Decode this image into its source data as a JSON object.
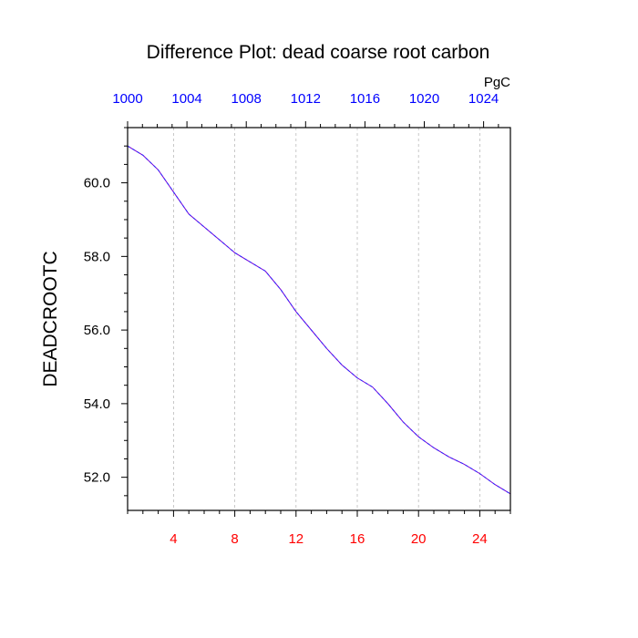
{
  "chart_data": {
    "type": "line",
    "title": "Difference Plot: dead coarse root carbon",
    "units_label": "PgC",
    "ylabel": "DEADCROOTC",
    "xlabel": "",
    "x": [
      1,
      2,
      3,
      4,
      5,
      6,
      7,
      8,
      9,
      10,
      11,
      12,
      13,
      14,
      15,
      16,
      17,
      18,
      19,
      20,
      21,
      22,
      23,
      24,
      25,
      26
    ],
    "series": [
      {
        "values": [
          61.0,
          60.75,
          60.35,
          59.75,
          59.15,
          58.8,
          58.45,
          58.1,
          57.85,
          57.6,
          57.1,
          56.5,
          56.0,
          55.5,
          55.05,
          54.7,
          54.45,
          54.0,
          53.5,
          53.1,
          52.8,
          52.55,
          52.35,
          52.1,
          51.8,
          51.55
        ]
      }
    ],
    "xlim": [
      1,
      26
    ],
    "ylim": [
      51.1,
      61.5
    ],
    "bottom_ticks": [
      4,
      8,
      12,
      16,
      20,
      24
    ],
    "bottom_tick_labels": [
      "4",
      "8",
      "12",
      "16",
      "20",
      "24"
    ],
    "top_tick_labels": [
      "1000",
      "1004",
      "1008",
      "1012",
      "1016",
      "1020",
      "1024"
    ],
    "top_ticks_positions": [
      1,
      4.875,
      8.75,
      12.625,
      16.5,
      20.375,
      24.25
    ],
    "y_ticks": [
      52.0,
      54.0,
      56.0,
      58.0,
      60.0
    ],
    "y_tick_labels": [
      "52.0",
      "54.0",
      "56.0",
      "58.0",
      "60.0"
    ],
    "grid": "vertical dashed",
    "colors": {
      "line": "#7a00d4",
      "line_dash": "#2a2aff",
      "bottom_ticks": "#ff0000",
      "top_ticks": "#0000ff",
      "text": "#000000",
      "grid": "#bbbbbb"
    }
  }
}
